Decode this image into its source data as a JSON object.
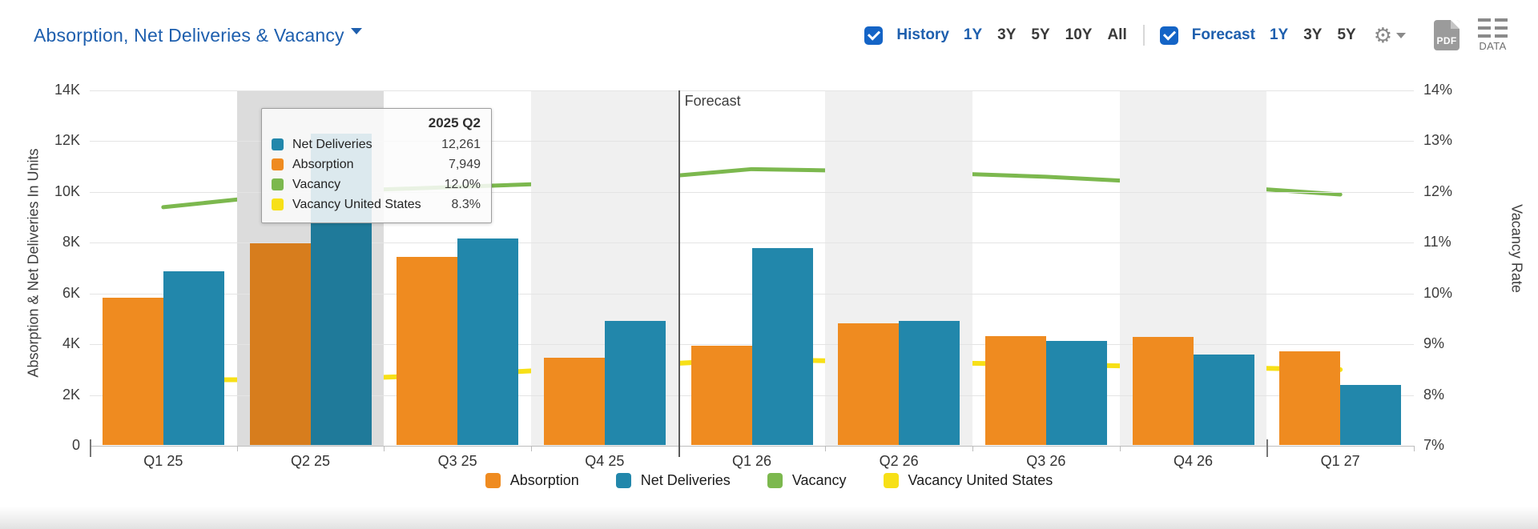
{
  "header": {
    "title": "Absorption, Net Deliveries & Vacancy"
  },
  "controls": {
    "history_label": "History",
    "history_ranges": [
      "1Y",
      "3Y",
      "5Y",
      "10Y",
      "All"
    ],
    "history_selected": "1Y",
    "history_checked": true,
    "forecast_label": "Forecast",
    "forecast_ranges": [
      "1Y",
      "3Y",
      "5Y"
    ],
    "forecast_selected": "1Y",
    "forecast_checked": true,
    "pdf_label": "PDF",
    "data_label": "DATA"
  },
  "chart_data": {
    "type": "bar",
    "categories": [
      "Q1 25",
      "Q2 25",
      "Q3 25",
      "Q4 25",
      "Q1 26",
      "Q2 26",
      "Q3 26",
      "Q4 26",
      "Q1 27"
    ],
    "series": [
      {
        "name": "Absorption",
        "kind": "bar",
        "axis": "left",
        "color": "#EF8B20",
        "values": [
          5800,
          7949,
          7400,
          3450,
          3900,
          4800,
          4300,
          4250,
          3700
        ]
      },
      {
        "name": "Net Deliveries",
        "kind": "bar",
        "axis": "left",
        "color": "#2287AB",
        "values": [
          6850,
          12261,
          8150,
          4900,
          7750,
          4900,
          4100,
          3550,
          2350
        ]
      },
      {
        "name": "Vacancy",
        "kind": "line",
        "axis": "right",
        "color": "#7CB84E",
        "values": [
          11.7,
          12.0,
          12.1,
          12.2,
          12.45,
          12.4,
          12.3,
          12.15,
          11.95
        ]
      },
      {
        "name": "Vacancy United States",
        "kind": "line",
        "axis": "right",
        "color": "#F7E017",
        "values": [
          8.3,
          8.3,
          8.4,
          8.55,
          8.7,
          8.65,
          8.6,
          8.55,
          8.5
        ]
      }
    ],
    "left_axis": {
      "title": "Absorption & Net Deliveries In Units",
      "min": 0,
      "max": 14000,
      "ticks": [
        "14K",
        "12K",
        "10K",
        "8K",
        "6K",
        "4K",
        "2K",
        "0"
      ]
    },
    "right_axis": {
      "title": "Vacancy Rate",
      "min": 7,
      "max": 14,
      "ticks": [
        "14%",
        "13%",
        "12%",
        "11%",
        "10%",
        "9%",
        "8%",
        "7%"
      ]
    },
    "forecast": {
      "label": "Forecast",
      "start_index": 4
    },
    "striped_quarters": [
      1,
      3,
      5,
      7
    ],
    "hover_quarter": 1,
    "year_boundary_ticks": [
      0,
      8
    ],
    "grid": true,
    "legend_position": "bottom"
  },
  "tooltip": {
    "title": "2025 Q2",
    "rows": [
      {
        "label": "Net Deliveries",
        "value": "12,261",
        "color": "#2287AB"
      },
      {
        "label": "Absorption",
        "value": "7,949",
        "color": "#EF8B20"
      },
      {
        "label": "Vacancy",
        "value": "12.0%",
        "color": "#7CB84E"
      },
      {
        "label": "Vacancy United States",
        "value": "8.3%",
        "color": "#F7E017"
      }
    ]
  },
  "legend": [
    {
      "label": "Absorption",
      "color": "#EF8B20"
    },
    {
      "label": "Net Deliveries",
      "color": "#2287AB"
    },
    {
      "label": "Vacancy",
      "color": "#7CB84E"
    },
    {
      "label": "Vacancy United States",
      "color": "#F7E017"
    }
  ],
  "colors": {
    "accent_blue": "#1E5FAE",
    "checkbox_blue": "#1464C6",
    "stripe": "#F0F0F0",
    "stripe_hover": "#DCDCDC",
    "icon_gray": "#8A8A8A"
  }
}
